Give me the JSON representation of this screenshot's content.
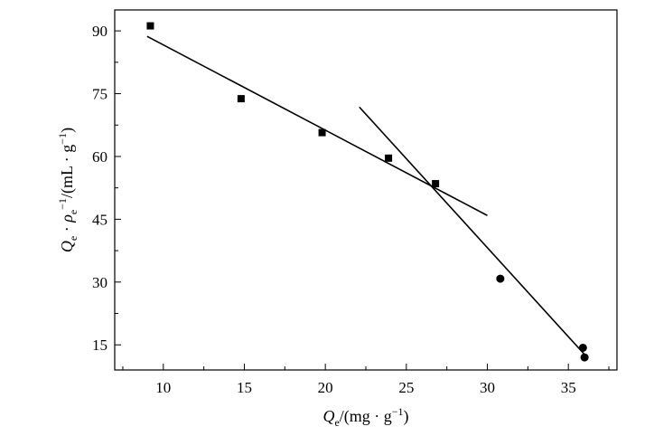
{
  "chart_data": {
    "type": "scatter",
    "title": "",
    "xlabel": {
      "sym": "Q",
      "sub": "e",
      "unit": "/(mg · g",
      "sup": "−1",
      "close": ")"
    },
    "ylabel": {
      "sym": "Q",
      "sub": "e",
      "mid": " · ",
      "rho": "ρ",
      "rsub": "e",
      "rsup": "−1",
      "unit": "/(mL · g",
      "sup": "−1",
      "close": ")"
    },
    "xlim": [
      7,
      38
    ],
    "ylim": [
      9,
      95
    ],
    "x_ticks": [
      10,
      15,
      20,
      25,
      30,
      35
    ],
    "y_ticks": [
      15,
      30,
      45,
      60,
      75,
      90
    ],
    "grid": false,
    "legend": "none",
    "series": [
      {
        "marker": "square",
        "points": [
          [
            9.2,
            91.2
          ],
          [
            14.8,
            73.8
          ],
          [
            19.8,
            65.7
          ],
          [
            23.9,
            59.6
          ],
          [
            26.8,
            53.5
          ]
        ]
      },
      {
        "marker": "circle",
        "points": [
          [
            30.8,
            30.8
          ],
          [
            35.9,
            14.3
          ],
          [
            36.0,
            12.0
          ]
        ]
      }
    ],
    "fit_lines": [
      {
        "x": [
          9.0,
          30.0
        ],
        "y": [
          88.7,
          45.9
        ]
      },
      {
        "x": [
          22.1,
          36.0
        ],
        "y": [
          71.8,
          12.7
        ]
      }
    ]
  }
}
